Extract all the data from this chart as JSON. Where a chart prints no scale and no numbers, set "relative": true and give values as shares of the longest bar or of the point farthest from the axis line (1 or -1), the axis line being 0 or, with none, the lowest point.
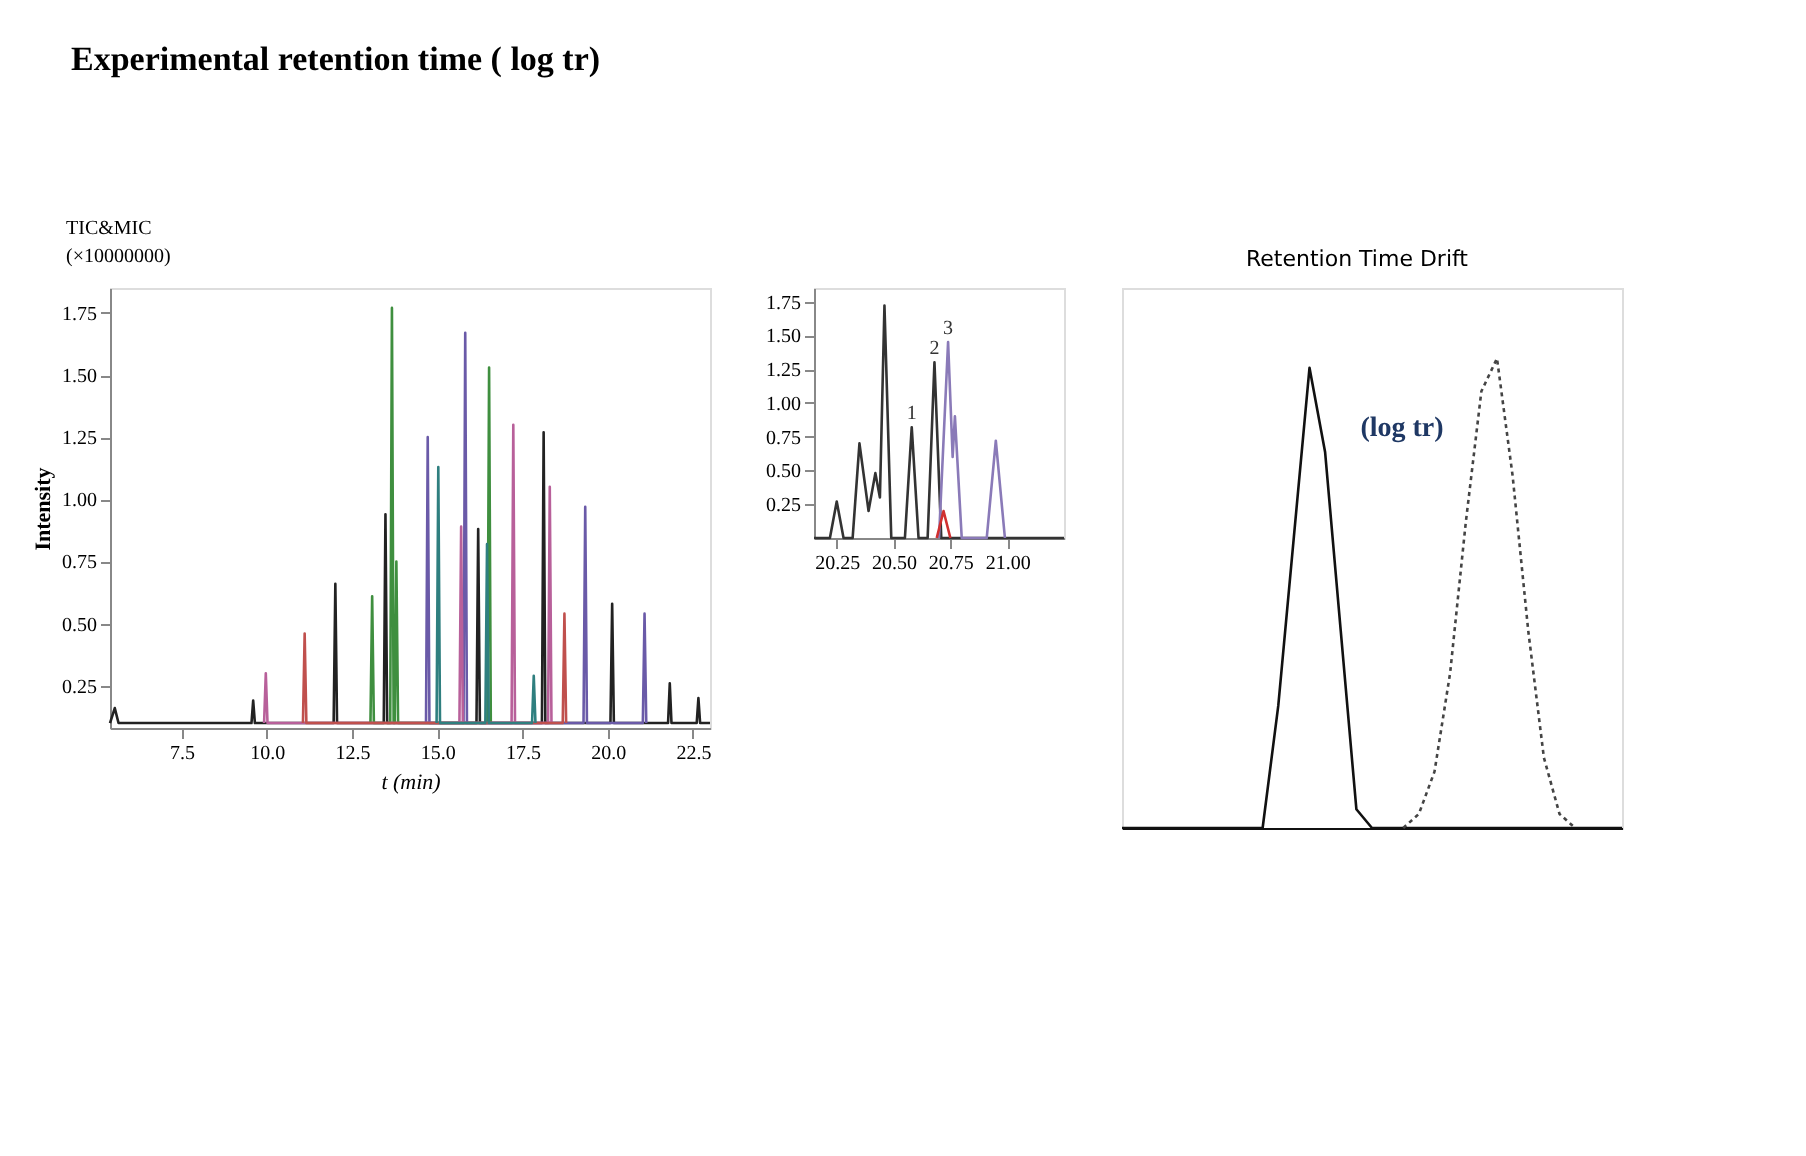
{
  "chart_data": [
    {
      "type": "line",
      "title": "Experimental retention time ( log tr)",
      "xlabel": "t (min)",
      "ylabel": "Intensity",
      "annotations": [
        "TIC&MIC",
        "(×10000000)"
      ],
      "xlim": [
        5.4,
        23.0
      ],
      "xticks": [
        {
          "value": 7.5,
          "label": "7.5"
        },
        {
          "value": 10,
          "label": "10.0"
        },
        {
          "value": 12.5,
          "label": "12.5"
        },
        {
          "value": 15,
          "label": "15.0"
        },
        {
          "value": 17.5,
          "label": "17.5"
        },
        {
          "value": 20,
          "label": "20.0"
        },
        {
          "value": 22.5,
          "label": "22.5"
        }
      ],
      "ylim": [
        0.08,
        1.85
      ],
      "yticks": [
        0.25,
        {
          "value": 0.5,
          "label": "0.50"
        },
        0.75,
        {
          "value": 1,
          "label": "1.00"
        },
        1.25,
        {
          "value": 1.5,
          "label": "1.50"
        },
        1.75
      ],
      "grid": false,
      "marker": "none",
      "line_style": "solid",
      "series": [
        {
          "color": "#222222",
          "x": [
            5.4,
            5.54,
            5.65,
            9.55,
            9.6,
            9.65,
            11.96,
            12.01,
            12.06,
            13.43,
            13.48,
            13.53,
            16.15,
            16.2,
            16.25,
            18.07,
            18.12,
            18.17,
            20.08,
            20.13,
            20.18,
            21.77,
            21.82,
            21.87,
            22.61,
            22.66,
            22.71,
            23.0
          ],
          "values": [
            0.1,
            0.16,
            0.1,
            0.1,
            0.19,
            0.1,
            0.1,
            0.66,
            0.1,
            0.1,
            0.94,
            0.1,
            0.1,
            0.88,
            0.1,
            0.1,
            1.27,
            0.1,
            0.1,
            0.58,
            0.1,
            0.1,
            0.26,
            0.1,
            0.1,
            0.2,
            0.1,
            0.1
          ]
        },
        {
          "color": "#3f8f3f",
          "x": [
            13.04,
            13.09,
            13.14,
            13.62,
            13.67,
            13.72,
            13.75,
            13.8,
            13.85,
            16.47,
            16.52,
            16.57
          ],
          "values": [
            0.1,
            0.61,
            0.1,
            0.1,
            1.77,
            0.1,
            0.1,
            0.75,
            0.1,
            0.1,
            1.53,
            0.1
          ]
        },
        {
          "color": "#6a5aa8",
          "x": [
            14.67,
            14.72,
            14.77,
            15.77,
            15.82,
            15.87,
            19.29,
            19.34,
            19.39,
            21.03,
            21.08,
            21.13
          ],
          "values": [
            0.1,
            1.25,
            0.1,
            0.1,
            1.67,
            0.1,
            0.1,
            0.97,
            0.1,
            0.1,
            0.54,
            0.1
          ]
        },
        {
          "color": "#b8609a",
          "x": [
            9.92,
            9.97,
            10.02,
            15.65,
            15.7,
            15.75,
            17.18,
            17.23,
            17.28,
            18.25,
            18.3,
            18.35
          ],
          "values": [
            0.1,
            0.3,
            0.1,
            0.1,
            0.89,
            0.1,
            0.1,
            1.3,
            0.1,
            0.1,
            1.05,
            0.1
          ]
        },
        {
          "color": "#c0504d",
          "x": [
            11.06,
            11.11,
            11.16,
            18.68,
            18.73,
            18.78
          ],
          "values": [
            0.1,
            0.46,
            0.1,
            0.1,
            0.54,
            0.1
          ]
        },
        {
          "color": "#2f7f7f",
          "x": [
            14.98,
            15.03,
            15.08,
            16.41,
            16.46,
            16.51,
            17.78,
            17.83,
            17.88
          ],
          "values": [
            0.1,
            1.13,
            0.1,
            0.1,
            0.82,
            0.1,
            0.1,
            0.29,
            0.1
          ]
        }
      ]
    },
    {
      "type": "line",
      "xlim": [
        20.15,
        21.25
      ],
      "xticks": [
        20.25,
        {
          "value": 20.5,
          "label": "20.50"
        },
        20.75,
        {
          "value": 21,
          "label": "21.00"
        }
      ],
      "ylim": [
        0,
        1.85
      ],
      "yticks": [
        0.25,
        {
          "value": 0.5,
          "label": "0.50"
        },
        0.75,
        {
          "value": 1,
          "label": "1.00"
        },
        1.25,
        {
          "value": 1.5,
          "label": "1.50"
        },
        1.75
      ],
      "grid": false,
      "marker": "none",
      "line_style": "solid",
      "annotations": [
        {
          "text": "1",
          "x": 20.58,
          "y": 0.82
        },
        {
          "text": "2",
          "x": 20.68,
          "y": 1.3
        },
        {
          "text": "3",
          "x": 20.74,
          "y": 1.45
        }
      ],
      "series": [
        {
          "color": "#333333",
          "x": [
            20.15,
            20.22,
            20.25,
            20.28,
            20.32,
            20.35,
            20.39,
            20.42,
            20.44,
            20.46,
            20.49,
            20.55,
            20.58,
            20.61,
            20.65,
            20.68,
            20.71,
            21.25
          ],
          "values": [
            0.0,
            0.0,
            0.27,
            0.0,
            0.0,
            0.7,
            0.2,
            0.48,
            0.3,
            1.72,
            0.0,
            0.0,
            0.82,
            0.0,
            0.0,
            1.3,
            0.0,
            0.0
          ]
        },
        {
          "color": "#8a7ab8",
          "x": [
            20.7,
            20.74,
            20.76,
            20.77,
            20.8,
            20.91,
            20.95,
            20.99
          ],
          "values": [
            0.0,
            1.45,
            0.6,
            0.9,
            0.0,
            0.0,
            0.72,
            0.0
          ]
        },
        {
          "color": "#d03030",
          "x": [
            20.69,
            20.72,
            20.75
          ],
          "values": [
            0.0,
            0.2,
            0.0
          ]
        }
      ]
    },
    {
      "type": "line",
      "relative": true,
      "tick_labels": false,
      "grid": false,
      "marker": "none",
      "annotations": [
        "Retention Time Drift",
        "(log tr)"
      ],
      "categories": [
        null,
        null,
        null,
        null,
        null,
        null,
        null,
        null,
        null,
        null,
        null,
        null,
        null,
        null,
        null,
        null,
        null,
        null,
        null,
        null,
        null,
        null,
        null,
        null,
        null,
        null,
        null,
        null,
        null,
        null,
        null,
        null,
        null
      ],
      "series": [
        {
          "color": "#111111",
          "line_style": "solid",
          "values": [
            0,
            0,
            0,
            0,
            0,
            0,
            0,
            0,
            0,
            0,
            0.26,
            0.62,
            0.98,
            0.8,
            0.42,
            0.04,
            0,
            0,
            0,
            0,
            0,
            0,
            0,
            0,
            0,
            0,
            0,
            0,
            0,
            0,
            0,
            0,
            0
          ]
        },
        {
          "color": "#444444",
          "line_style": "dotted",
          "values": [
            null,
            null,
            null,
            null,
            null,
            null,
            null,
            null,
            null,
            null,
            null,
            null,
            null,
            null,
            null,
            null,
            null,
            null,
            0,
            0.03,
            0.12,
            0.33,
            0.65,
            0.93,
            1.0,
            0.75,
            0.42,
            0.15,
            0.03,
            0,
            null,
            null,
            null
          ]
        }
      ]
    }
  ]
}
